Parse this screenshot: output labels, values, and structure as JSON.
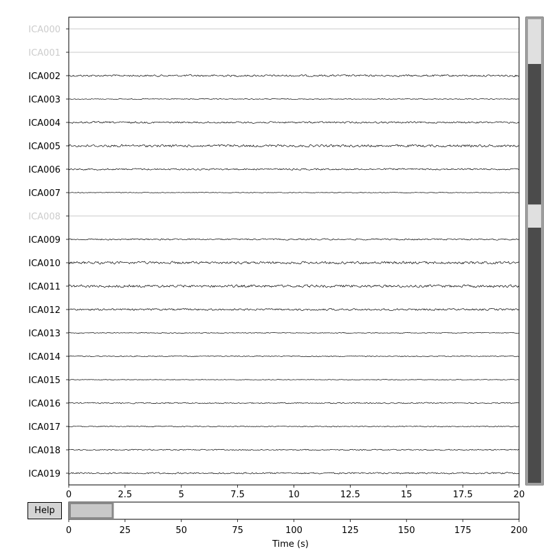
{
  "chart_data": {
    "type": "line",
    "title": "",
    "xlabel": "",
    "ylabel": "",
    "xlim": [
      0,
      20
    ],
    "xticks": [
      "0",
      "2.5",
      "5",
      "7.5",
      "10",
      "12.5",
      "15",
      "17.5",
      "20"
    ],
    "grid": false,
    "trace_color": "#000000",
    "excluded_color": "#d4d4d4",
    "series": [
      {
        "name": "ICA000",
        "excluded": true,
        "amplitude": 0.0
      },
      {
        "name": "ICA001",
        "excluded": true,
        "amplitude": 0.0
      },
      {
        "name": "ICA002",
        "excluded": false,
        "amplitude": 1.2
      },
      {
        "name": "ICA003",
        "excluded": false,
        "amplitude": 0.5
      },
      {
        "name": "ICA004",
        "excluded": false,
        "amplitude": 1.1
      },
      {
        "name": "ICA005",
        "excluded": false,
        "amplitude": 1.5
      },
      {
        "name": "ICA006",
        "excluded": false,
        "amplitude": 1.0
      },
      {
        "name": "ICA007",
        "excluded": false,
        "amplitude": 0.4
      },
      {
        "name": "ICA008",
        "excluded": true,
        "amplitude": 0.0
      },
      {
        "name": "ICA009",
        "excluded": false,
        "amplitude": 0.9
      },
      {
        "name": "ICA010",
        "excluded": false,
        "amplitude": 1.6
      },
      {
        "name": "ICA011",
        "excluded": false,
        "amplitude": 1.6
      },
      {
        "name": "ICA012",
        "excluded": false,
        "amplitude": 1.2
      },
      {
        "name": "ICA013",
        "excluded": false,
        "amplitude": 0.5
      },
      {
        "name": "ICA014",
        "excluded": false,
        "amplitude": 0.6
      },
      {
        "name": "ICA015",
        "excluded": false,
        "amplitude": 0.4
      },
      {
        "name": "ICA016",
        "excluded": false,
        "amplitude": 0.7
      },
      {
        "name": "ICA017",
        "excluded": false,
        "amplitude": 0.6
      },
      {
        "name": "ICA018",
        "excluded": false,
        "amplitude": 0.7
      },
      {
        "name": "ICA019",
        "excluded": false,
        "amplitude": 1.0
      }
    ],
    "channel_scrollbar": {
      "background_color": "#e0e0e0",
      "fill_color": "#4b4b4b",
      "excluded_channels": [
        "ICA000",
        "ICA001",
        "ICA008"
      ]
    },
    "time_navigator": {
      "xlim": [
        0,
        200
      ],
      "xticks": [
        "0",
        "25",
        "50",
        "75",
        "100",
        "125",
        "150",
        "175",
        "200"
      ],
      "xlabel": "Time (s)",
      "window_start": 0,
      "window_end": 20,
      "window_color": "#c8c8c8"
    }
  },
  "help_button": {
    "label": "Help"
  }
}
